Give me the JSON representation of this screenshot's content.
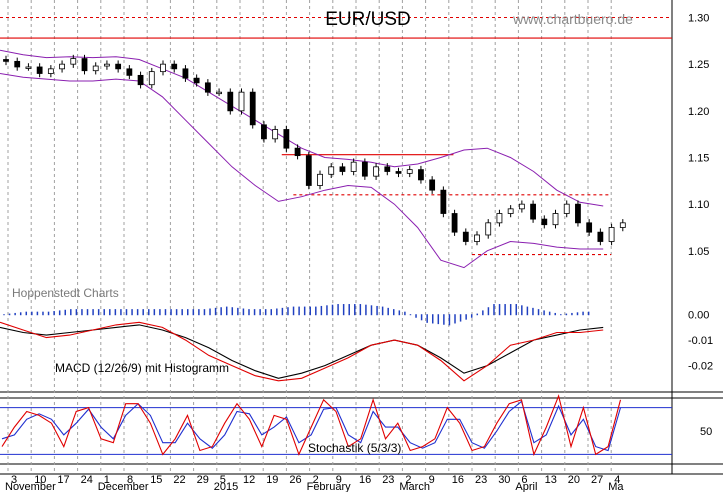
{
  "header": {
    "title": "EUR/USD",
    "watermark": "www.chartbuero.de"
  },
  "source_label": "Hoppenstedt Charts",
  "colors": {
    "band": "#8a1fb0",
    "resistance": "#e00000",
    "support": "#e00000",
    "macd": "#000000",
    "signal": "#e00000",
    "histogram": "#2040c0",
    "stoch_k": "#e00000",
    "stoch_d": "#2030d0",
    "stoch_ref": "#2030d0",
    "grid": "#a0a0a0",
    "candle": "#000000"
  },
  "chart_data": [
    {
      "type": "candlestick",
      "title": "EUR/USD",
      "ylim": [
        1.0,
        1.3
      ],
      "yticks": [
        "1.30",
        "1.25",
        "1.20",
        "1.15",
        "1.10",
        "1.05"
      ],
      "ytick_values": [
        1.3,
        1.25,
        1.2,
        1.15,
        1.1,
        1.05
      ],
      "x_day_labels": [
        "3",
        "10",
        "17",
        "24",
        "1",
        "8",
        "15",
        "22",
        "29",
        "5",
        "12",
        "19",
        "26",
        "2",
        "9",
        "16",
        "23",
        "2",
        "9",
        "16",
        "23",
        "30",
        "6",
        "13",
        "20",
        "27",
        "4"
      ],
      "x_month_labels": [
        "November",
        "December",
        "2015",
        "February",
        "March",
        "April",
        "Ma"
      ],
      "x_month_label_positions": [
        0,
        4,
        9,
        13,
        17,
        22,
        26
      ],
      "horizontal_lines": [
        {
          "value": 1.3,
          "style": "dashed"
        },
        {
          "value": 1.278,
          "style": "solid"
        },
        {
          "value": 1.153,
          "style": "solid",
          "from_week": 11.8,
          "to_week": 19.2
        },
        {
          "value": 1.11,
          "style": "dashed",
          "from_week": 12.3,
          "to_week": 26.0
        },
        {
          "value": 1.046,
          "style": "dashed",
          "from_week": 20.0,
          "to_week": 26.0
        }
      ],
      "series": [
        {
          "name": "close",
          "values": [
            1.253,
            1.247,
            1.247,
            1.24,
            1.245,
            1.25,
            1.256,
            1.243,
            1.248,
            1.25,
            1.245,
            1.238,
            1.228,
            1.242,
            1.25,
            1.245,
            1.235,
            1.23,
            1.22,
            1.22,
            1.2,
            1.22,
            1.185,
            1.17,
            1.18,
            1.16,
            1.152,
            1.12,
            1.132,
            1.14,
            1.135,
            1.145,
            1.13,
            1.14,
            1.135,
            1.133,
            1.137,
            1.126,
            1.115,
            1.09,
            1.07,
            1.06,
            1.067,
            1.08,
            1.09,
            1.095,
            1.1,
            1.084,
            1.078,
            1.09,
            1.1,
            1.08,
            1.07,
            1.06,
            1.075,
            1.08
          ]
        },
        {
          "name": "upper-band",
          "values": [
            1.265,
            1.26,
            1.257,
            1.258,
            1.257,
            1.258,
            1.255,
            1.245,
            1.235,
            1.22,
            1.205,
            1.19,
            1.175,
            1.16,
            1.15,
            1.148,
            1.145,
            1.14,
            1.143,
            1.15,
            1.158,
            1.16,
            1.15,
            1.135,
            1.115,
            1.102,
            1.098
          ]
        },
        {
          "name": "lower-band",
          "values": [
            1.24,
            1.236,
            1.234,
            1.232,
            1.232,
            1.234,
            1.232,
            1.215,
            1.19,
            1.165,
            1.14,
            1.12,
            1.103,
            1.108,
            1.115,
            1.12,
            1.118,
            1.1,
            1.075,
            1.04,
            1.032,
            1.05,
            1.06,
            1.058,
            1.054,
            1.052,
            1.052
          ]
        }
      ]
    },
    {
      "type": "line",
      "title": "MACD (12/26/9) mit Histogramm",
      "ylim": [
        -0.03,
        0.005
      ],
      "yticks": [
        "0.00",
        "-0.01",
        "-0.02"
      ],
      "ytick_values": [
        0.0,
        -0.01,
        -0.02
      ],
      "series": [
        {
          "name": "macd",
          "values": [
            -0.005,
            -0.007,
            -0.008,
            -0.007,
            -0.006,
            -0.005,
            -0.004,
            -0.006,
            -0.009,
            -0.013,
            -0.018,
            -0.022,
            -0.025,
            -0.023,
            -0.02,
            -0.016,
            -0.012,
            -0.01,
            -0.012,
            -0.017,
            -0.023,
            -0.02,
            -0.015,
            -0.01,
            -0.008,
            -0.006,
            -0.005
          ]
        },
        {
          "name": "signal",
          "values": [
            -0.003,
            -0.006,
            -0.009,
            -0.008,
            -0.006,
            -0.004,
            -0.003,
            -0.005,
            -0.01,
            -0.016,
            -0.02,
            -0.024,
            -0.026,
            -0.025,
            -0.021,
            -0.017,
            -0.012,
            -0.01,
            -0.012,
            -0.018,
            -0.026,
            -0.02,
            -0.012,
            -0.01,
            -0.007,
            -0.007,
            -0.006
          ]
        },
        {
          "name": "histogram",
          "values": [
            0.0,
            0.001,
            0.001,
            0.002,
            0.002,
            0.002,
            0.002,
            0.002,
            0.002,
            0.002,
            0.003,
            0.002,
            0.002,
            0.003,
            0.003,
            0.004,
            0.004,
            0.003,
            0.001,
            -0.003,
            -0.004,
            -0.001,
            0.004,
            0.004,
            0.002,
            0.0,
            0.001
          ]
        }
      ]
    },
    {
      "type": "line",
      "title": "Stochastik (5/3/3)",
      "ylim": [
        0,
        100
      ],
      "yticks": [
        "50"
      ],
      "ytick_values": [
        50
      ],
      "reference_lines": [
        80,
        20
      ],
      "series": [
        {
          "name": "k",
          "values": [
            30,
            55,
            75,
            70,
            60,
            30,
            75,
            80,
            40,
            35,
            85,
            85,
            60,
            20,
            40,
            70,
            25,
            30,
            60,
            85,
            65,
            30,
            70,
            65,
            20,
            55,
            90,
            75,
            30,
            40,
            90,
            40,
            60,
            25,
            30,
            40,
            80,
            60,
            25,
            30,
            60,
            85,
            90,
            20,
            55,
            95,
            30,
            80,
            20,
            30,
            90
          ]
        },
        {
          "name": "d",
          "values": [
            40,
            45,
            65,
            72,
            65,
            45,
            60,
            78,
            55,
            40,
            70,
            85,
            70,
            35,
            35,
            60,
            40,
            28,
            45,
            75,
            72,
            45,
            55,
            68,
            35,
            45,
            78,
            80,
            45,
            35,
            75,
            55,
            55,
            35,
            28,
            35,
            65,
            65,
            35,
            28,
            50,
            75,
            88,
            35,
            45,
            82,
            45,
            65,
            30,
            25,
            80
          ]
        }
      ]
    }
  ]
}
